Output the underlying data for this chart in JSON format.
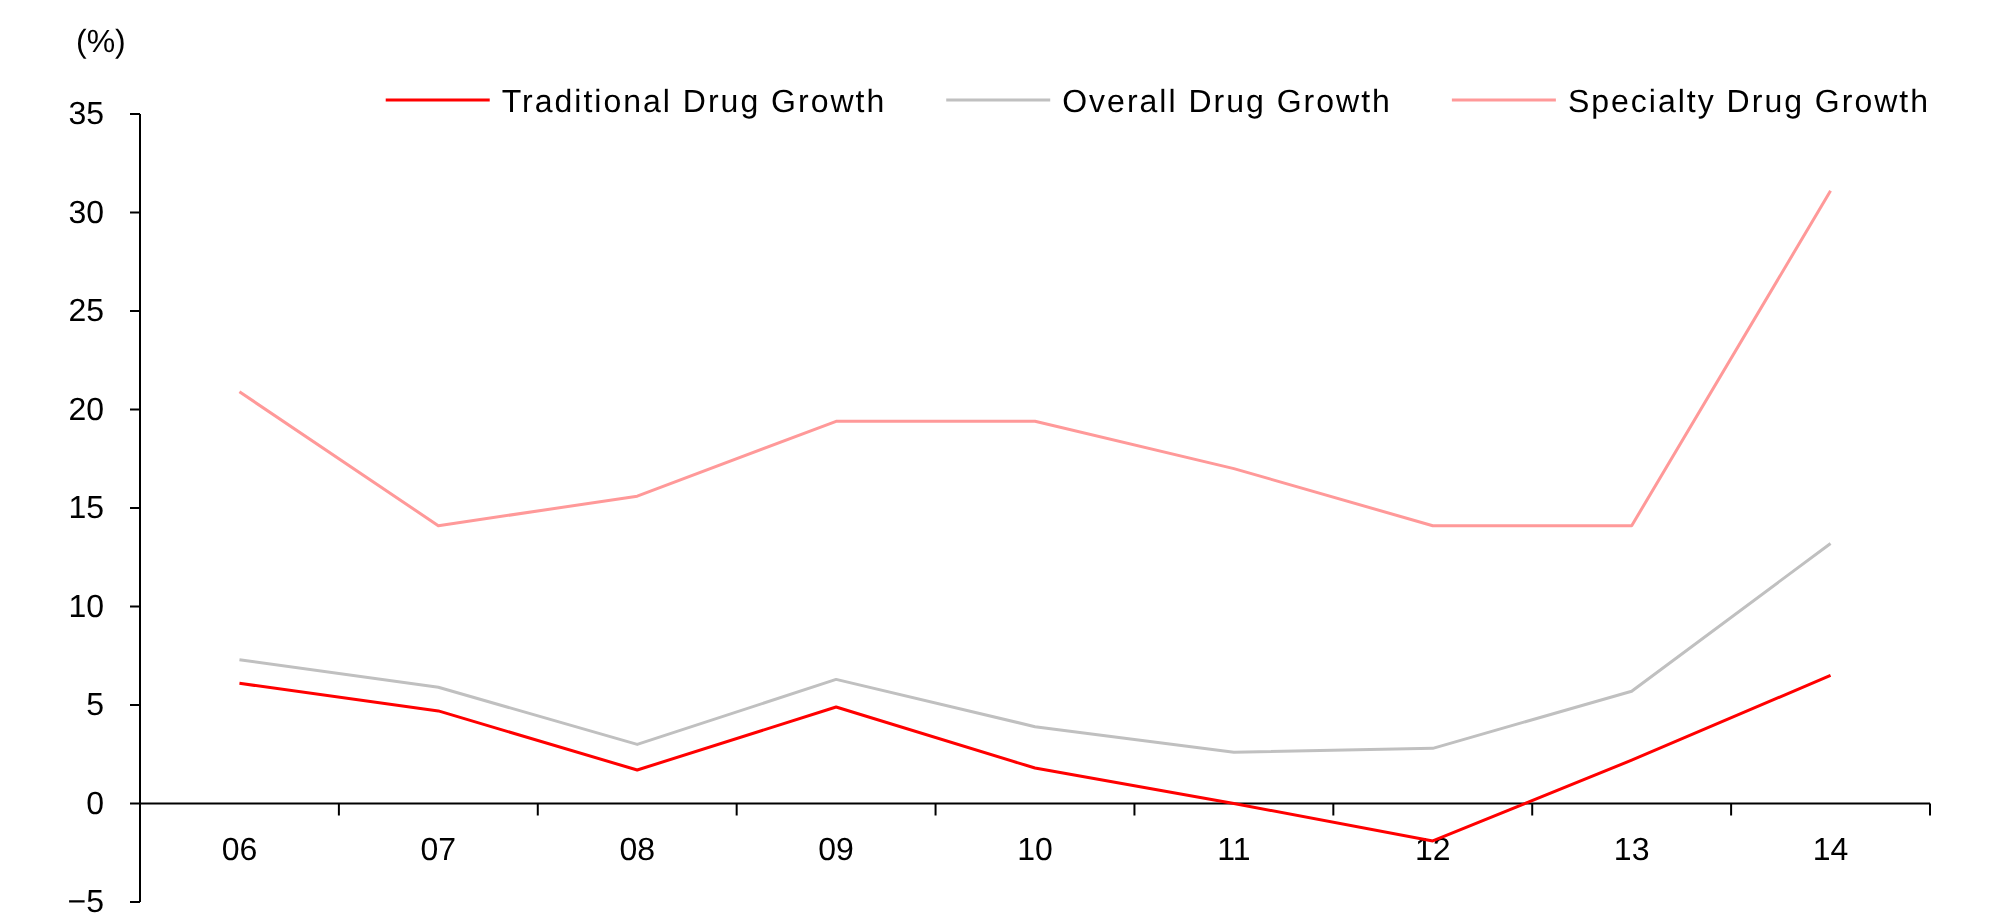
{
  "chart_data": {
    "type": "line",
    "ylabel": "(%)",
    "categories": [
      "06",
      "07",
      "08",
      "09",
      "10",
      "11",
      "12",
      "13",
      "14"
    ],
    "series": [
      {
        "name": "Traditional Drug Growth",
        "color": "#ff0000",
        "values": [
          6.1,
          4.7,
          1.7,
          4.9,
          1.8,
          0,
          -1.9,
          2.2,
          6.5
        ]
      },
      {
        "name": "Overall Drug Growth",
        "color": "#c0c0c0",
        "values": [
          7.3,
          5.9,
          3.0,
          6.3,
          3.9,
          2.6,
          2.8,
          5.7,
          13.2
        ]
      },
      {
        "name": "Specialty Drug Growth",
        "color": "#ff9999",
        "values": [
          20.9,
          14.1,
          15.6,
          19.4,
          19.4,
          17.0,
          14.1,
          14.1,
          31.1
        ]
      }
    ],
    "ylim": [
      -5,
      35
    ],
    "yticks": [
      -5,
      0,
      5,
      10,
      15,
      20,
      25,
      30,
      35
    ],
    "legend": "top right",
    "grid": false,
    "marker": "none",
    "line_style": "solid"
  }
}
